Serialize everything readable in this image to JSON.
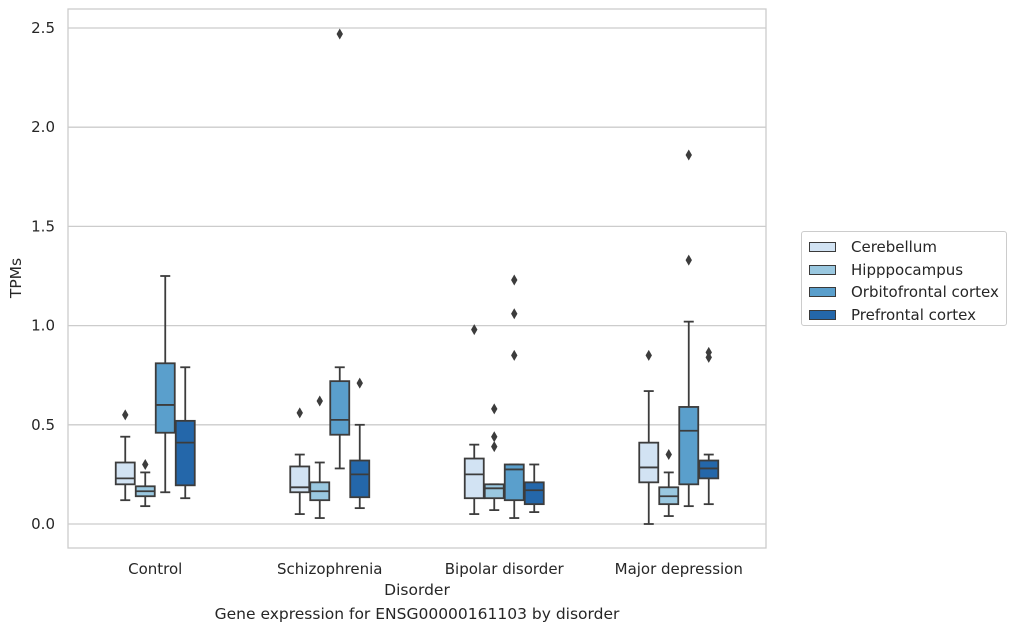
{
  "chart_data": {
    "type": "box",
    "title": "Gene expression for ENSG00000161103 by disorder",
    "xlabel": "Disorder",
    "ylabel": "TPMs",
    "ylim": [
      -0.12,
      2.6
    ],
    "yticks": [
      "0.0",
      "0.5",
      "1.0",
      "1.5",
      "2.0",
      "2.5"
    ],
    "grid": "horizontal",
    "legend_position": "right",
    "categories": [
      "Control",
      "Schizophrenia",
      "Bipolar disorder",
      "Major depression"
    ],
    "series": [
      {
        "name": "Cerebellum",
        "color": "#d2e3f3",
        "boxes": [
          {
            "whislo": 0.12,
            "q1": 0.2,
            "med": 0.23,
            "q3": 0.31,
            "whishi": 0.44,
            "fliers": [
              0.55
            ]
          },
          {
            "whislo": 0.05,
            "q1": 0.16,
            "med": 0.185,
            "q3": 0.29,
            "whishi": 0.35,
            "fliers": [
              0.56
            ]
          },
          {
            "whislo": 0.05,
            "q1": 0.13,
            "med": 0.25,
            "q3": 0.33,
            "whishi": 0.4,
            "fliers": [
              0.98
            ]
          },
          {
            "whislo": 0.0,
            "q1": 0.21,
            "med": 0.285,
            "q3": 0.41,
            "whishi": 0.67,
            "fliers": [
              0.85
            ]
          }
        ]
      },
      {
        "name": "Hipppocampus",
        "color": "#9ac8e0",
        "boxes": [
          {
            "whislo": 0.09,
            "q1": 0.14,
            "med": 0.165,
            "q3": 0.19,
            "whishi": 0.26,
            "fliers": [
              0.3
            ]
          },
          {
            "whislo": 0.03,
            "q1": 0.12,
            "med": 0.165,
            "q3": 0.21,
            "whishi": 0.31,
            "fliers": [
              0.62
            ]
          },
          {
            "whislo": 0.07,
            "q1": 0.13,
            "med": 0.18,
            "q3": 0.2,
            "whishi": 0.2,
            "fliers": [
              0.39,
              0.44,
              0.58
            ]
          },
          {
            "whislo": 0.04,
            "q1": 0.1,
            "med": 0.14,
            "q3": 0.185,
            "whishi": 0.26,
            "fliers": [
              0.35
            ]
          }
        ]
      },
      {
        "name": "Orbitofrontal cortex",
        "color": "#5a9fcc",
        "boxes": [
          {
            "whislo": 0.16,
            "q1": 0.46,
            "med": 0.6,
            "q3": 0.81,
            "whishi": 1.25,
            "fliers": []
          },
          {
            "whislo": 0.28,
            "q1": 0.45,
            "med": 0.525,
            "q3": 0.72,
            "whishi": 0.79,
            "fliers": [
              2.47
            ]
          },
          {
            "whislo": 0.03,
            "q1": 0.12,
            "med": 0.275,
            "q3": 0.3,
            "whishi": 0.3,
            "fliers": [
              0.85,
              1.06,
              1.23
            ]
          },
          {
            "whislo": 0.09,
            "q1": 0.2,
            "med": 0.47,
            "q3": 0.59,
            "whishi": 1.02,
            "fliers": [
              1.33,
              1.86
            ]
          }
        ]
      },
      {
        "name": "Prefrontal cortex",
        "color": "#2467aa",
        "boxes": [
          {
            "whislo": 0.13,
            "q1": 0.195,
            "med": 0.41,
            "q3": 0.52,
            "whishi": 0.79,
            "fliers": []
          },
          {
            "whislo": 0.08,
            "q1": 0.135,
            "med": 0.25,
            "q3": 0.32,
            "whishi": 0.5,
            "fliers": [
              0.71
            ]
          },
          {
            "whislo": 0.06,
            "q1": 0.1,
            "med": 0.17,
            "q3": 0.21,
            "whishi": 0.3,
            "fliers": []
          },
          {
            "whislo": 0.1,
            "q1": 0.23,
            "med": 0.28,
            "q3": 0.32,
            "whishi": 0.35,
            "fliers": [
              0.84,
              0.865
            ]
          }
        ]
      }
    ]
  }
}
